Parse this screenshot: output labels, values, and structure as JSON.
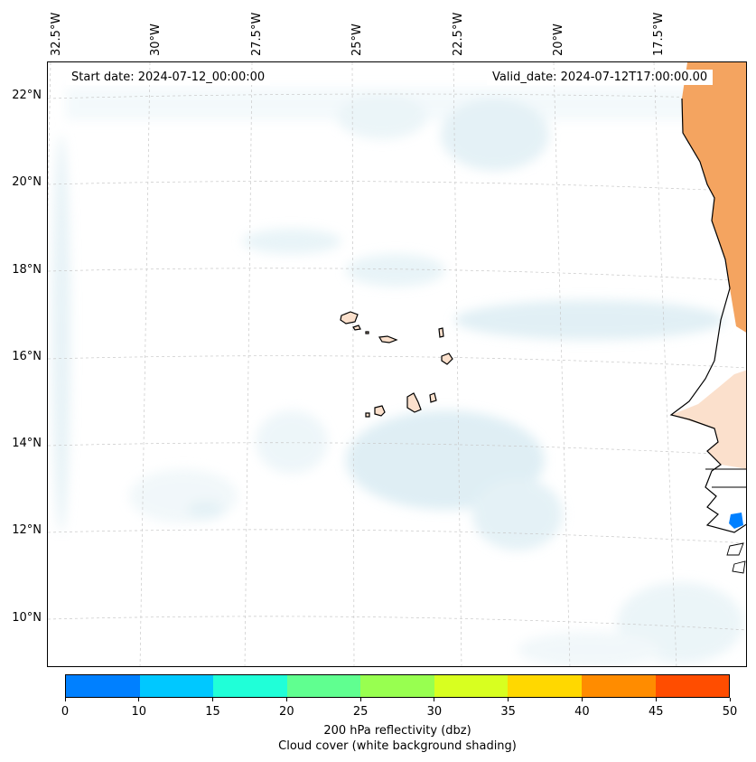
{
  "map": {
    "start_date": "Start date: 2024-07-12_00:00:00",
    "valid_date": "Valid_date: 2024-07-12T17:00:00.00",
    "lon_labels": [
      "32.5°W",
      "30°W",
      "27.5°W",
      "25°W",
      "22.5°W",
      "20°W",
      "17.5°W"
    ],
    "lat_labels": [
      "22°N",
      "20°N",
      "18°N",
      "16°N",
      "14°N",
      "12°N",
      "10°N"
    ],
    "gridlines": "dashed",
    "land_fill_color": "#f4a460",
    "cloud_color": "#d6ebf2",
    "reflectivity_blob_color": "#0080ff"
  },
  "colorbar": {
    "ticks": [
      "0",
      "10",
      "15",
      "20",
      "25",
      "30",
      "35",
      "40",
      "45",
      "50"
    ],
    "colors": [
      "#0080ff",
      "#00c8ff",
      "#20ffd8",
      "#60ff90",
      "#98ff50",
      "#d8ff20",
      "#ffd800",
      "#ff8c00",
      "#ff4d00"
    ],
    "label_1": "200 hPa reflectivity (dbz)",
    "label_2": "Cloud cover (white background shading)"
  }
}
